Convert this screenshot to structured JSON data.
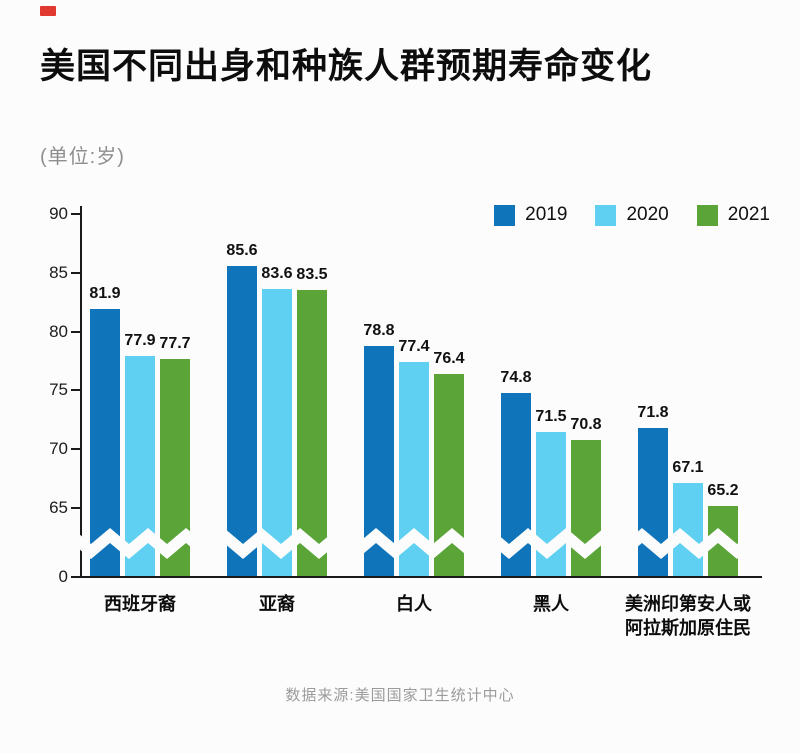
{
  "header": {
    "title": "美国不同出身和种族人群预期寿命变化",
    "unit_label": "(单位:岁)"
  },
  "footer": {
    "source": "数据来源:美国国家卫生统计中心"
  },
  "colors": {
    "series_2019": "#0f74ba",
    "series_2020": "#5fd0f1",
    "series_2021": "#5ba538",
    "marker_red": "#e0392f",
    "axis": "#1a1a1a",
    "background": "#fcfcfc"
  },
  "chart_data": {
    "type": "bar",
    "title": "美国不同出身和种族人群预期寿命变化",
    "unit": "岁",
    "categories": [
      "西班牙裔",
      "亚裔",
      "白人",
      "黑人",
      "美洲印第安人或阿拉斯加原住民"
    ],
    "series": [
      {
        "name": "2019",
        "color": "#0f74ba",
        "values": [
          81.9,
          85.6,
          78.8,
          74.8,
          71.8
        ]
      },
      {
        "name": "2020",
        "color": "#5fd0f1",
        "values": [
          77.9,
          83.6,
          77.4,
          71.5,
          67.1
        ]
      },
      {
        "name": "2021",
        "color": "#5ba538",
        "values": [
          77.7,
          83.5,
          76.4,
          70.8,
          65.2
        ]
      }
    ],
    "y_ticks": [
      0,
      65,
      70,
      75,
      80,
      85,
      90
    ],
    "visible_y_range": [
      65,
      90
    ],
    "axis_break": true,
    "grid": false,
    "value_labels": true,
    "legend_position": "top-right",
    "source": "数据来源:美国国家卫生统计中心"
  }
}
